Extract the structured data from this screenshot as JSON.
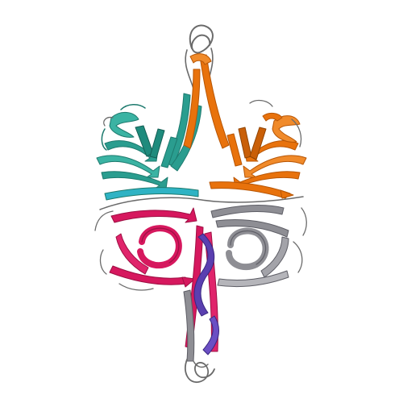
{
  "image": {
    "subject": "protein-cartoon-ribbon",
    "background": "#ffffff"
  },
  "colors": {
    "chain_teal": "#2a9d8f",
    "chain_teal_dark": "#1d7a6e",
    "chain_orange": "#e8720c",
    "chain_orange_dark": "#b85605",
    "chain_magenta": "#d6185e",
    "chain_magenta_dark": "#9e0f43",
    "chain_gray": "#8e8e94",
    "chain_gray_dark": "#5e5e66",
    "chain_purple": "#5a3fb0",
    "coil_gray": "#6b6b6b"
  }
}
